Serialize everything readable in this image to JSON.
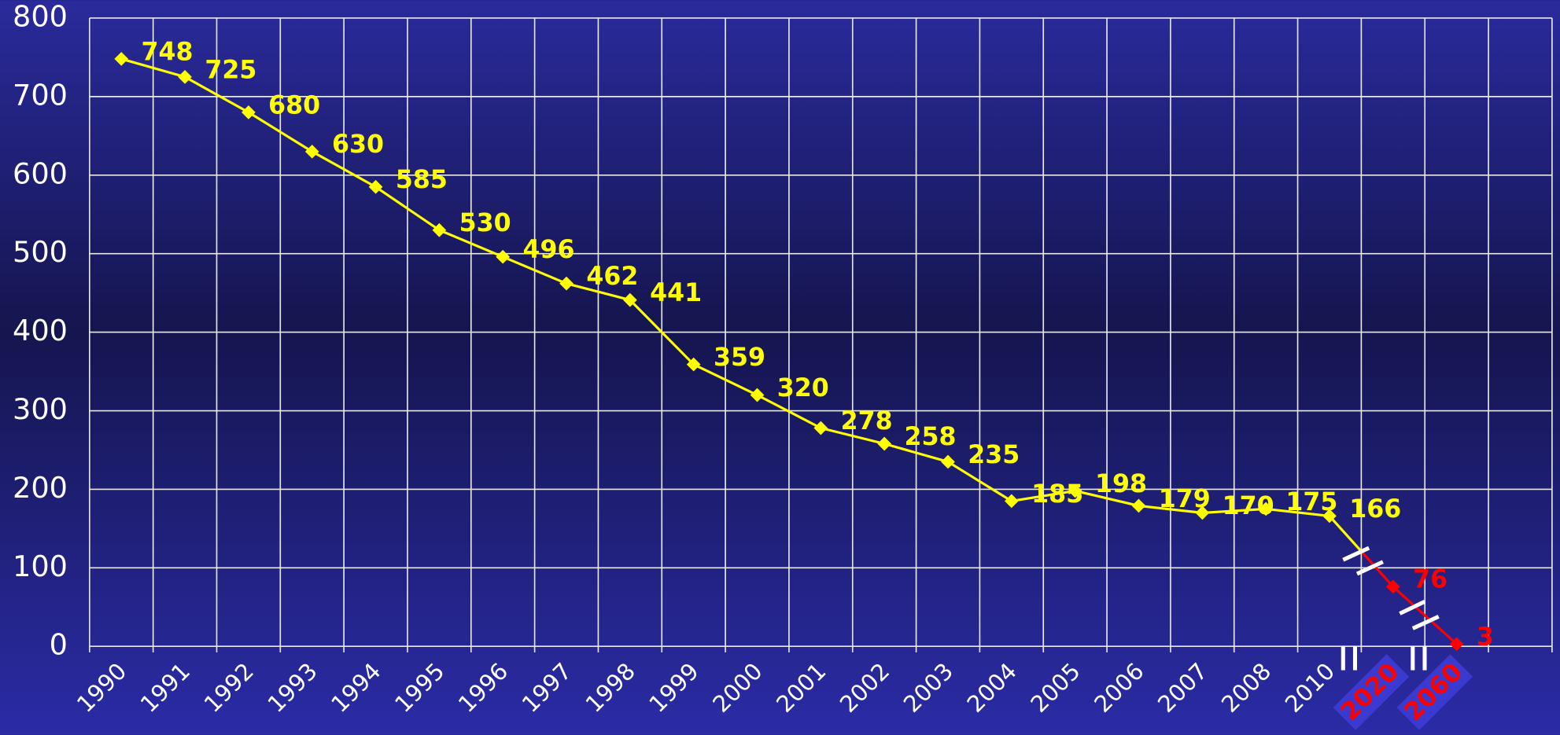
{
  "chart_data": {
    "type": "line",
    "categories": [
      "1990",
      "1991",
      "1992",
      "1993",
      "1994",
      "1995",
      "1996",
      "1997",
      "1998",
      "1999",
      "2000",
      "2001",
      "2002",
      "2003",
      "2004",
      "2005",
      "2006",
      "2007",
      "2008",
      "2010",
      "2020",
      "2060",
      null
    ],
    "series": [
      {
        "color": "#ffff00",
        "values": [
          748,
          725,
          680,
          630,
          585,
          530,
          496,
          462,
          441,
          359,
          320,
          278,
          258,
          235,
          185,
          198,
          179,
          170,
          175,
          166,
          76,
          3,
          null
        ],
        "point_colors": [
          "#ffff00",
          "#ffff00",
          "#ffff00",
          "#ffff00",
          "#ffff00",
          "#ffff00",
          "#ffff00",
          "#ffff00",
          "#ffff00",
          "#ffff00",
          "#ffff00",
          "#ffff00",
          "#ffff00",
          "#ffff00",
          "#ffff00",
          "#ffff00",
          "#ffff00",
          "#ffff00",
          "#ffff00",
          "#ffff00",
          "#ff0000",
          "#ff0000",
          null
        ]
      }
    ],
    "ylim": [
      0,
      800
    ],
    "yticks": [
      0,
      100,
      200,
      300,
      400,
      500,
      600,
      700,
      800
    ],
    "grid": true
  }
}
